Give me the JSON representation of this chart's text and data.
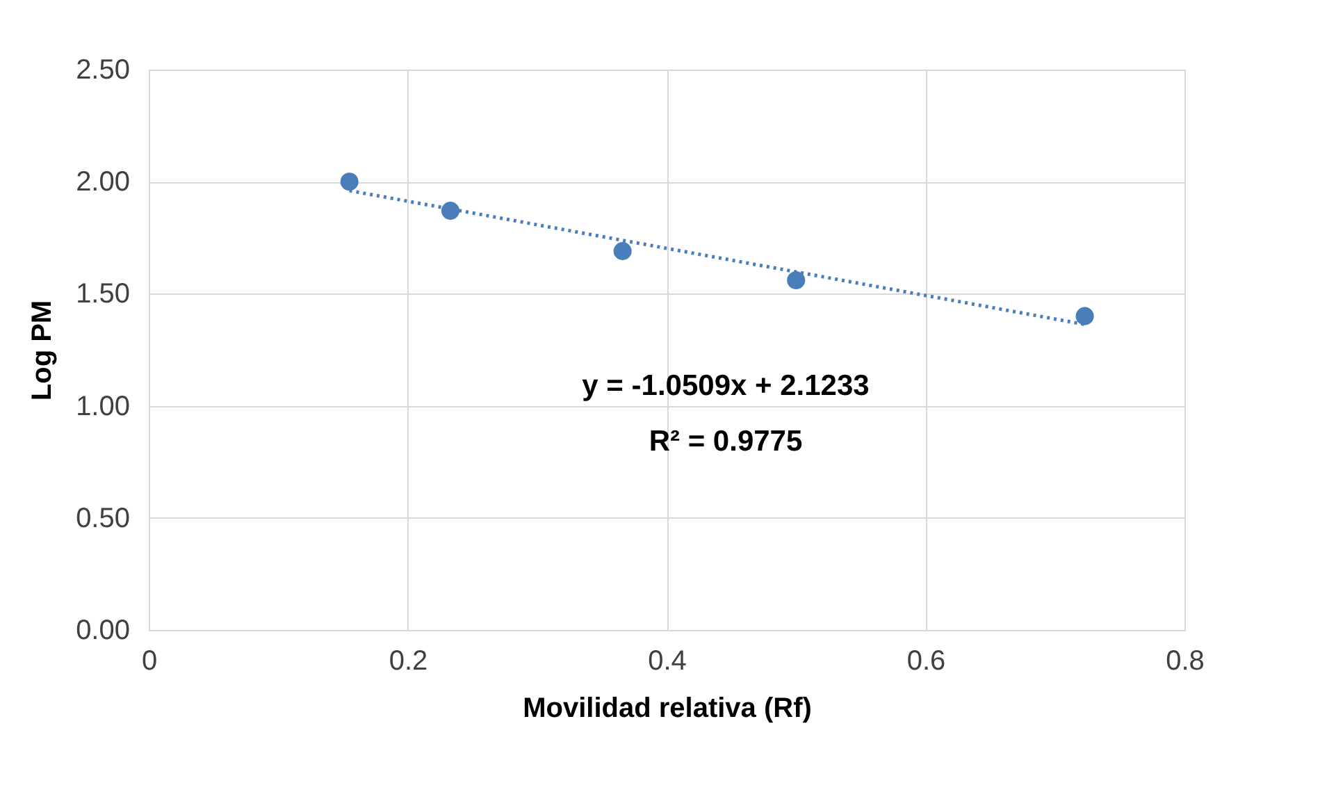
{
  "chart_data": {
    "type": "scatter",
    "xlabel": "Movilidad relativa (Rf)",
    "ylabel": "Log PM",
    "series": [
      {
        "type": "scatter",
        "color": "#4a7ebb",
        "x": [
          0.155,
          0.233,
          0.366,
          0.5,
          0.723
        ],
        "values": [
          2.0,
          1.87,
          1.69,
          1.56,
          1.4
        ],
        "marker": "circle"
      },
      {
        "type": "line",
        "color": "#4a7ebb",
        "x": [
          0.155,
          0.723
        ],
        "values": [
          1.96,
          1.363
        ],
        "line_style": "dotted"
      }
    ],
    "xlim": [
      0,
      0.8
    ],
    "xticks": [
      0,
      0.2,
      0.4,
      0.6,
      0.8
    ],
    "ylim": [
      0,
      2.5
    ],
    "yticks": [
      {
        "value": 0,
        "label": "0.00"
      },
      {
        "value": 0.5,
        "label": "0.50"
      },
      {
        "value": 1,
        "label": "1.00"
      },
      {
        "value": 1.5,
        "label": "1.50"
      },
      {
        "value": 2,
        "label": "2.00"
      },
      {
        "value": 2.5,
        "label": "2.50"
      }
    ],
    "grid": true,
    "annotations": [
      "y = -1.0509x + 2.1233",
      "R² = 0.9775"
    ]
  }
}
